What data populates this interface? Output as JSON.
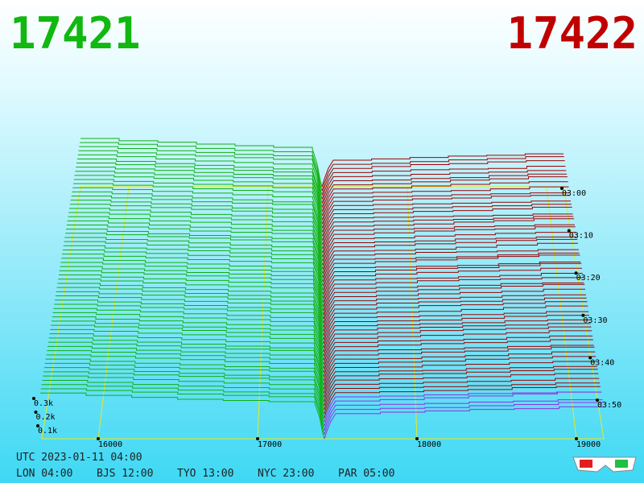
{
  "header": {
    "bid": "17421",
    "ask": "17422"
  },
  "price_axis": [
    "16000",
    "17000",
    "18000",
    "19000"
  ],
  "time_axis": [
    "03:00",
    "03:10",
    "03:20",
    "03:30",
    "03:40",
    "03:50"
  ],
  "depth_axis": [
    "0.3k",
    "0.2k",
    "0.1k"
  ],
  "footer": {
    "utc": "UTC 2023-01-11 04:00",
    "clocks": [
      "LON 04:00",
      "BJS 12:00",
      "TYO 13:00",
      "NYC 23:00",
      "PAR 05:00"
    ]
  }
}
